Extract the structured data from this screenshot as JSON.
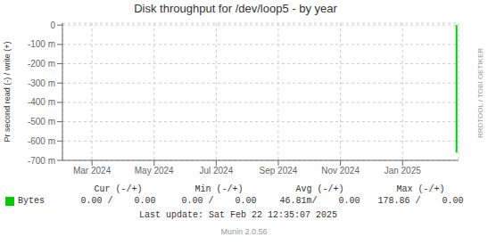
{
  "chart_data": {
    "type": "line",
    "title": "Disk throughput for /dev/loop5 - by year",
    "y_label": "Pr second read (-) / write (+)",
    "series": [
      {
        "name": "Bytes",
        "color": "#00cc00",
        "x": [
          1740182400,
          1740182400
        ],
        "values": [
          0,
          -660
        ]
      }
    ],
    "xlim": [
      1706745600,
      1740355200
    ],
    "xticks": [
      {
        "value": 1709251200,
        "label": "Mar 2024"
      },
      {
        "value": 1714521600,
        "label": "May 2024"
      },
      {
        "value": 1719792000,
        "label": "Jul 2024"
      },
      {
        "value": 1725062400,
        "label": "Sep 2024"
      },
      {
        "value": 1730332800,
        "label": "Nov 2024"
      },
      {
        "value": 1735603200,
        "label": "Jan 2025"
      }
    ],
    "ylim": [
      -700,
      10
    ],
    "yticks": [
      0,
      {
        "value": -100,
        "label": "-100 m"
      },
      {
        "value": -200,
        "label": "-200 m"
      },
      {
        "value": -300,
        "label": "-300 m"
      },
      {
        "value": -400,
        "label": "-400 m"
      },
      {
        "value": -500,
        "label": "-500 m"
      },
      {
        "value": -600,
        "label": "-600 m"
      },
      {
        "value": -700,
        "label": "-700 m"
      }
    ],
    "grid": true,
    "legend": "bottom left",
    "annotations": [
      "Cur (-/+)",
      "Min (-/+)",
      "Avg (-/+)",
      "Max (-/+)",
      "0.00 /    0.00",
      "0.00 /    0.00",
      "46.81m/    0.00",
      "178.86 /    0.00",
      "Last update: Sat Feb 22 12:35:07 2025",
      "Munin 2.0.56",
      "RRDTOOL / TOBI OETIKER"
    ]
  }
}
